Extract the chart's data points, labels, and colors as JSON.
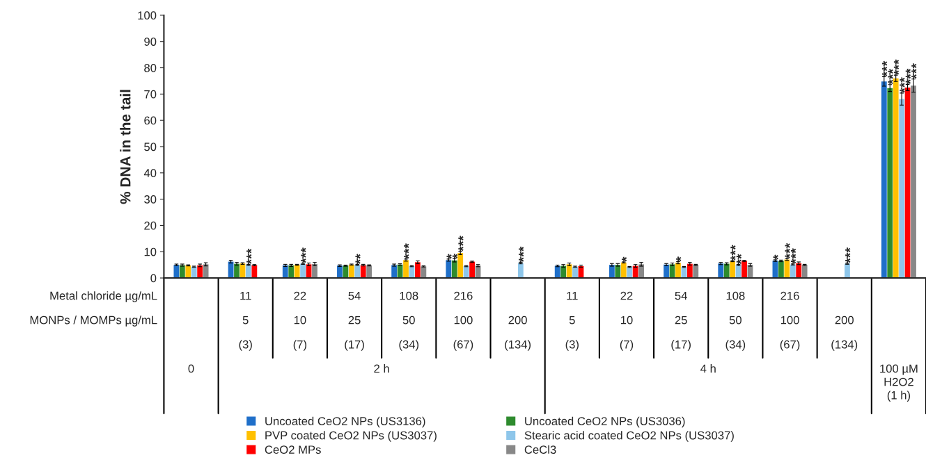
{
  "chart_data": {
    "type": "bar",
    "ylabel": "% DNA in the tail",
    "categories": [
      null,
      "11\n5\n(3)",
      "22\n10\n(7)",
      "54\n25\n(17)",
      "108\n50\n(34)",
      "216\n100\n(67)",
      "200\n(134)",
      "11\n5\n(3)",
      "22\n10\n(7)",
      "54\n25\n(17)",
      "108\n50\n(34)",
      "216\n100\n(67)",
      "200\n(134)",
      null
    ],
    "series": [
      {
        "name": "Uncoated CeO2 NPs (US3136)",
        "color": "#1f6fc9",
        "values": [
          5.0,
          6.2,
          4.8,
          4.7,
          4.9,
          6.8,
          null,
          4.6,
          5.0,
          5.1,
          5.5,
          6.6,
          null,
          74.8
        ],
        "errors": [
          0.3,
          0.5,
          0.4,
          0.3,
          0.4,
          0.4,
          null,
          0.3,
          0.5,
          0.4,
          0.4,
          0.3,
          null,
          1.8
        ]
      },
      {
        "name": "Uncoated CeO2 NPs (US3036)",
        "color": "#2e8b2e",
        "values": [
          4.9,
          5.4,
          4.8,
          4.7,
          5.1,
          6.7,
          null,
          4.6,
          5.0,
          5.2,
          5.4,
          6.5,
          null,
          72.3
        ],
        "errors": [
          0.4,
          0.5,
          0.4,
          0.2,
          0.3,
          0.6,
          null,
          0.5,
          0.5,
          0.5,
          0.4,
          0.3,
          null,
          1.3
        ]
      },
      {
        "name": "PVP coated CeO2 NPs (US3037)",
        "color": "#ffc000",
        "values": [
          4.8,
          5.5,
          5.0,
          5.1,
          6.8,
          9.5,
          null,
          5.2,
          5.9,
          5.8,
          6.4,
          7.0,
          null,
          76.0
        ],
        "errors": [
          0.2,
          0.3,
          0.2,
          0.2,
          0.4,
          0.6,
          null,
          0.5,
          0.2,
          0.4,
          0.2,
          0.3,
          null,
          1.2
        ]
      },
      {
        "name": "Stearic acid coated CeO2 NPs (US3037)",
        "color": "#8ec6ea",
        "values": [
          4.3,
          5.0,
          5.4,
          5.0,
          4.5,
          4.5,
          5.7,
          4.3,
          4.2,
          4.2,
          4.96,
          5.13,
          5.43,
          68.1
        ],
        "errors": [
          0.2,
          0.2,
          0.2,
          0.2,
          0.2,
          0.2,
          0.3,
          0.2,
          0.2,
          0.2,
          0.2,
          0.2,
          0.2,
          2.3
        ]
      },
      {
        "name": "CeO2 MPs",
        "color": "#ff0000",
        "values": [
          4.8,
          4.9,
          5.2,
          4.9,
          6.0,
          6.2,
          null,
          4.5,
          4.6,
          5.4,
          6.5,
          5.6,
          null,
          72.5
        ],
        "errors": [
          0.5,
          0.2,
          0.5,
          0.3,
          0.5,
          0.2,
          null,
          0.4,
          0.5,
          0.5,
          0.2,
          0.5,
          null,
          1.2
        ]
      },
      {
        "name": "CeCl3",
        "color": "#888888",
        "values": [
          5.2,
          null,
          5.3,
          4.8,
          4.4,
          4.7,
          null,
          null,
          5.2,
          5.0,
          5.0,
          5.0,
          null,
          73.2
        ],
        "errors": [
          0.6,
          null,
          0.6,
          0.2,
          0.2,
          0.4,
          null,
          null,
          0.7,
          0.2,
          0.5,
          0.2,
          null,
          2.5
        ]
      }
    ],
    "ylim": [
      0,
      100
    ],
    "yticks": [
      0,
      10,
      20,
      30,
      40,
      50,
      60,
      70,
      80,
      90,
      100
    ],
    "grid": false,
    "legend": "bottom",
    "annotations": [
      "Metal chloride µg/mL",
      "MONPs / MOMPs µg/mL",
      "0",
      "2 h",
      "4 h",
      "100 µM\nH2O2\n(1 h)",
      {
        "text": "***",
        "x": "11\n5\n(3)",
        "y": 5.0
      },
      {
        "text": "***",
        "x": "22\n10\n(7)",
        "y": 5.4
      },
      {
        "text": "**",
        "x": "54\n25\n(17)",
        "y": 5.0
      },
      {
        "text": "***",
        "x": "108\n50\n(34)",
        "y": 6.8
      },
      {
        "text": "*",
        "x": "216\n100\n(67)",
        "y": 6.8
      },
      {
        "text": "*",
        "x": "216\n100\n(67)",
        "y": 6.7
      },
      {
        "text": "***",
        "x": "216\n100\n(67)",
        "y": 9.5
      },
      {
        "text": "***",
        "x": "200\n(134)",
        "y": 5.7
      },
      {
        "text": "*",
        "y": 5.9
      },
      {
        "text": "*",
        "y": 5.8
      },
      {
        "text": "***",
        "y": 6.4
      },
      {
        "text": "**",
        "y": 4.96
      },
      {
        "text": "*",
        "y": 6.6
      },
      {
        "text": "***",
        "y": 7.0
      },
      {
        "text": "***",
        "y": 5.13
      },
      {
        "text": "***",
        "y": 5.43
      },
      {
        "text": "***",
        "y": 74.8
      },
      {
        "text": "***",
        "y": 72.3
      },
      {
        "text": "***",
        "y": 76.0
      },
      {
        "text": "***",
        "y": 68.1
      },
      {
        "text": "***",
        "y": 72.5
      },
      {
        "text": "***",
        "y": 73.2
      }
    ]
  }
}
